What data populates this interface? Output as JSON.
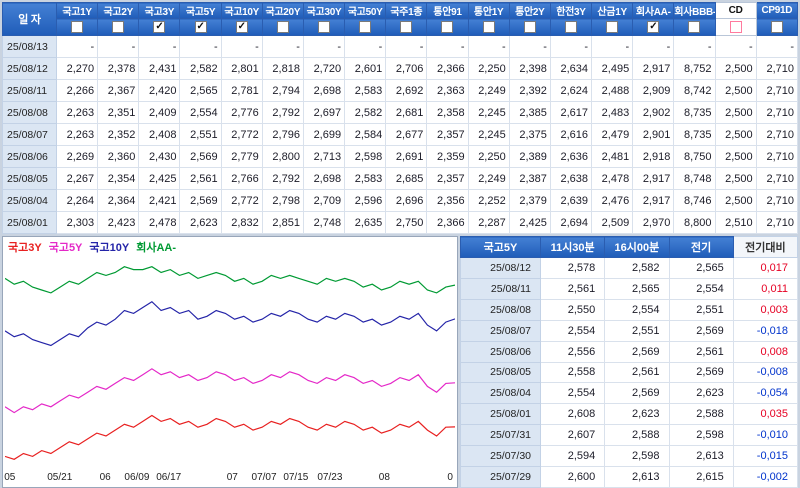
{
  "main_table": {
    "date_header": "일 자",
    "columns": [
      {
        "id": "ktb-1y",
        "label": "국고1Y",
        "checked": false,
        "highlight": false
      },
      {
        "id": "ktb-2y",
        "label": "국고2Y",
        "checked": false,
        "highlight": false
      },
      {
        "id": "ktb-3y",
        "label": "국고3Y",
        "checked": true,
        "highlight": false
      },
      {
        "id": "ktb-5y",
        "label": "국고5Y",
        "checked": true,
        "highlight": false
      },
      {
        "id": "ktb-10y",
        "label": "국고10Y",
        "checked": true,
        "highlight": false
      },
      {
        "id": "ktb-20y",
        "label": "국고20Y",
        "checked": false,
        "highlight": false
      },
      {
        "id": "ktb-30y",
        "label": "국고30Y",
        "checked": false,
        "highlight": false
      },
      {
        "id": "ktb-50y",
        "label": "국고50Y",
        "checked": false,
        "highlight": false
      },
      {
        "id": "nhb-1",
        "label": "국주1종",
        "checked": false,
        "highlight": false
      },
      {
        "id": "msb-91",
        "label": "통안91",
        "checked": false,
        "highlight": false
      },
      {
        "id": "msb-1y",
        "label": "통안1Y",
        "checked": false,
        "highlight": false
      },
      {
        "id": "msb-2y",
        "label": "통안2Y",
        "checked": false,
        "highlight": false
      },
      {
        "id": "kepco-3y",
        "label": "한전3Y",
        "checked": false,
        "highlight": false
      },
      {
        "id": "kdb-1y",
        "label": "산금1Y",
        "checked": false,
        "highlight": false
      },
      {
        "id": "corp-aa",
        "label": "회사AA-",
        "checked": true,
        "highlight": false
      },
      {
        "id": "corp-bbb",
        "label": "회사BBB-",
        "checked": false,
        "highlight": false
      },
      {
        "id": "cd",
        "label": "CD",
        "checked": false,
        "highlight": true
      },
      {
        "id": "cp-91d",
        "label": "CP91D",
        "checked": false,
        "highlight": false
      }
    ],
    "rows": [
      {
        "date": "25/08/13",
        "values": [
          "-",
          "-",
          "-",
          "-",
          "-",
          "-",
          "-",
          "-",
          "-",
          "-",
          "-",
          "-",
          "-",
          "-",
          "-",
          "-",
          "-",
          "-"
        ]
      },
      {
        "date": "25/08/12",
        "values": [
          "2,270",
          "2,378",
          "2,431",
          "2,582",
          "2,801",
          "2,818",
          "2,720",
          "2,601",
          "2,706",
          "2,366",
          "2,250",
          "2,398",
          "2,634",
          "2,495",
          "2,917",
          "8,752",
          "2,500",
          "2,710"
        ]
      },
      {
        "date": "25/08/11",
        "values": [
          "2,266",
          "2,367",
          "2,420",
          "2,565",
          "2,781",
          "2,794",
          "2,698",
          "2,583",
          "2,692",
          "2,363",
          "2,249",
          "2,392",
          "2,624",
          "2,488",
          "2,909",
          "8,742",
          "2,500",
          "2,710"
        ]
      },
      {
        "date": "25/08/08",
        "values": [
          "2,263",
          "2,351",
          "2,409",
          "2,554",
          "2,776",
          "2,792",
          "2,697",
          "2,582",
          "2,681",
          "2,358",
          "2,245",
          "2,385",
          "2,617",
          "2,483",
          "2,902",
          "8,735",
          "2,500",
          "2,710"
        ]
      },
      {
        "date": "25/08/07",
        "values": [
          "2,263",
          "2,352",
          "2,408",
          "2,551",
          "2,772",
          "2,796",
          "2,699",
          "2,584",
          "2,677",
          "2,357",
          "2,245",
          "2,375",
          "2,616",
          "2,479",
          "2,901",
          "8,735",
          "2,500",
          "2,710"
        ]
      },
      {
        "date": "25/08/06",
        "values": [
          "2,269",
          "2,360",
          "2,430",
          "2,569",
          "2,779",
          "2,800",
          "2,713",
          "2,598",
          "2,691",
          "2,359",
          "2,250",
          "2,389",
          "2,636",
          "2,481",
          "2,918",
          "8,750",
          "2,500",
          "2,710"
        ]
      },
      {
        "date": "25/08/05",
        "values": [
          "2,267",
          "2,354",
          "2,425",
          "2,561",
          "2,766",
          "2,792",
          "2,698",
          "2,583",
          "2,685",
          "2,357",
          "2,249",
          "2,387",
          "2,638",
          "2,478",
          "2,917",
          "8,748",
          "2,500",
          "2,710"
        ]
      },
      {
        "date": "25/08/04",
        "values": [
          "2,264",
          "2,364",
          "2,421",
          "2,569",
          "2,772",
          "2,798",
          "2,709",
          "2,596",
          "2,696",
          "2,356",
          "2,252",
          "2,379",
          "2,639",
          "2,476",
          "2,917",
          "8,746",
          "2,500",
          "2,710"
        ]
      },
      {
        "date": "25/08/01",
        "values": [
          "2,303",
          "2,423",
          "2,478",
          "2,623",
          "2,832",
          "2,851",
          "2,748",
          "2,635",
          "2,750",
          "2,366",
          "2,287",
          "2,425",
          "2,694",
          "2,509",
          "2,970",
          "8,800",
          "2,510",
          "2,710"
        ]
      }
    ]
  },
  "detail_table": {
    "headers": [
      "국고5Y",
      "11시30분",
      "16시00분",
      "전기",
      "전기대비"
    ],
    "header_ids": [
      "series",
      "time-1130",
      "time-1600",
      "prev",
      "change"
    ],
    "rows": [
      {
        "date": "25/08/12",
        "v1": "2,578",
        "v2": "2,582",
        "v3": "2,565",
        "diff": "0,017"
      },
      {
        "date": "25/08/11",
        "v1": "2,561",
        "v2": "2,565",
        "v3": "2,554",
        "diff": "0,011"
      },
      {
        "date": "25/08/08",
        "v1": "2,550",
        "v2": "2,554",
        "v3": "2,551",
        "diff": "0,003"
      },
      {
        "date": "25/08/07",
        "v1": "2,554",
        "v2": "2,551",
        "v3": "2,569",
        "diff": "-0,018"
      },
      {
        "date": "25/08/06",
        "v1": "2,556",
        "v2": "2,569",
        "v3": "2,561",
        "diff": "0,008"
      },
      {
        "date": "25/08/05",
        "v1": "2,558",
        "v2": "2,561",
        "v3": "2,569",
        "diff": "-0,008"
      },
      {
        "date": "25/08/04",
        "v1": "2,554",
        "v2": "2,569",
        "v3": "2,623",
        "diff": "-0,054"
      },
      {
        "date": "25/08/01",
        "v1": "2,608",
        "v2": "2,623",
        "v3": "2,588",
        "diff": "0,035"
      },
      {
        "date": "25/07/31",
        "v1": "2,607",
        "v2": "2,588",
        "v3": "2,598",
        "diff": "-0,010"
      },
      {
        "date": "25/07/30",
        "v1": "2,594",
        "v2": "2,598",
        "v3": "2,613",
        "diff": "-0,015"
      },
      {
        "date": "25/07/29",
        "v1": "2,600",
        "v2": "2,613",
        "v3": "2,615",
        "diff": "-0,002"
      }
    ]
  },
  "chart_data": {
    "type": "line",
    "title": "",
    "xlabel": "",
    "ylabel": "",
    "legend_position": "top-left",
    "grid": false,
    "y_range": [
      2.28,
      3.02
    ],
    "x_ticks": [
      {
        "label": "05",
        "pos": 0.015
      },
      {
        "label": "05/21",
        "pos": 0.125
      },
      {
        "label": "06",
        "pos": 0.225
      },
      {
        "label": "06/09",
        "pos": 0.295
      },
      {
        "label": "06/17",
        "pos": 0.365
      },
      {
        "label": "07",
        "pos": 0.505
      },
      {
        "label": "07/07",
        "pos": 0.575
      },
      {
        "label": "07/15",
        "pos": 0.645
      },
      {
        "label": "07/23",
        "pos": 0.72
      },
      {
        "label": "08",
        "pos": 0.84
      },
      {
        "label": "0",
        "pos": 0.985
      }
    ],
    "series": [
      {
        "id": "ktb-3y",
        "name": "국고3Y",
        "color": "#e82020",
        "values": [
          2.33,
          2.32,
          2.34,
          2.33,
          2.35,
          2.34,
          2.36,
          2.38,
          2.37,
          2.39,
          2.41,
          2.4,
          2.42,
          2.44,
          2.43,
          2.45,
          2.47,
          2.45,
          2.46,
          2.44,
          2.45,
          2.43,
          2.44,
          2.46,
          2.45,
          2.43,
          2.44,
          2.42,
          2.43,
          2.45,
          2.44,
          2.46,
          2.45,
          2.43,
          2.42,
          2.44,
          2.43,
          2.45,
          2.44,
          2.42,
          2.43,
          2.41,
          2.42,
          2.44,
          2.43,
          2.45,
          2.42,
          2.4,
          2.43,
          2.431
        ]
      },
      {
        "id": "ktb-5y",
        "name": "국고5Y",
        "color": "#e428c8",
        "values": [
          2.5,
          2.48,
          2.5,
          2.49,
          2.51,
          2.5,
          2.52,
          2.54,
          2.53,
          2.55,
          2.57,
          2.56,
          2.58,
          2.6,
          2.59,
          2.61,
          2.63,
          2.61,
          2.62,
          2.6,
          2.61,
          2.59,
          2.6,
          2.62,
          2.61,
          2.59,
          2.6,
          2.58,
          2.59,
          2.61,
          2.6,
          2.62,
          2.61,
          2.59,
          2.58,
          2.6,
          2.59,
          2.61,
          2.6,
          2.58,
          2.59,
          2.57,
          2.58,
          2.6,
          2.59,
          2.61,
          2.57,
          2.55,
          2.58,
          2.582
        ]
      },
      {
        "id": "ktb-10y",
        "name": "국고10Y",
        "color": "#2424a8",
        "values": [
          2.76,
          2.74,
          2.75,
          2.73,
          2.72,
          2.71,
          2.73,
          2.75,
          2.74,
          2.77,
          2.79,
          2.78,
          2.8,
          2.83,
          2.82,
          2.84,
          2.86,
          2.83,
          2.84,
          2.82,
          2.83,
          2.8,
          2.81,
          2.83,
          2.82,
          2.8,
          2.81,
          2.79,
          2.8,
          2.82,
          2.81,
          2.83,
          2.82,
          2.8,
          2.79,
          2.81,
          2.8,
          2.82,
          2.81,
          2.79,
          2.8,
          2.78,
          2.79,
          2.81,
          2.8,
          2.82,
          2.78,
          2.76,
          2.79,
          2.801
        ]
      },
      {
        "id": "corp-aa",
        "name": "회사AA-",
        "color": "#009a33",
        "values": [
          2.94,
          2.92,
          2.93,
          2.91,
          2.9,
          2.89,
          2.91,
          2.93,
          2.92,
          2.94,
          2.96,
          2.95,
          2.96,
          2.98,
          2.97,
          2.97,
          2.98,
          2.96,
          2.97,
          2.95,
          2.96,
          2.94,
          2.95,
          2.96,
          2.95,
          2.93,
          2.94,
          2.92,
          2.93,
          2.95,
          2.94,
          2.95,
          2.94,
          2.93,
          2.92,
          2.94,
          2.93,
          2.94,
          2.93,
          2.91,
          2.92,
          2.9,
          2.91,
          2.93,
          2.92,
          2.93,
          2.9,
          2.89,
          2.91,
          2.917
        ]
      }
    ]
  }
}
